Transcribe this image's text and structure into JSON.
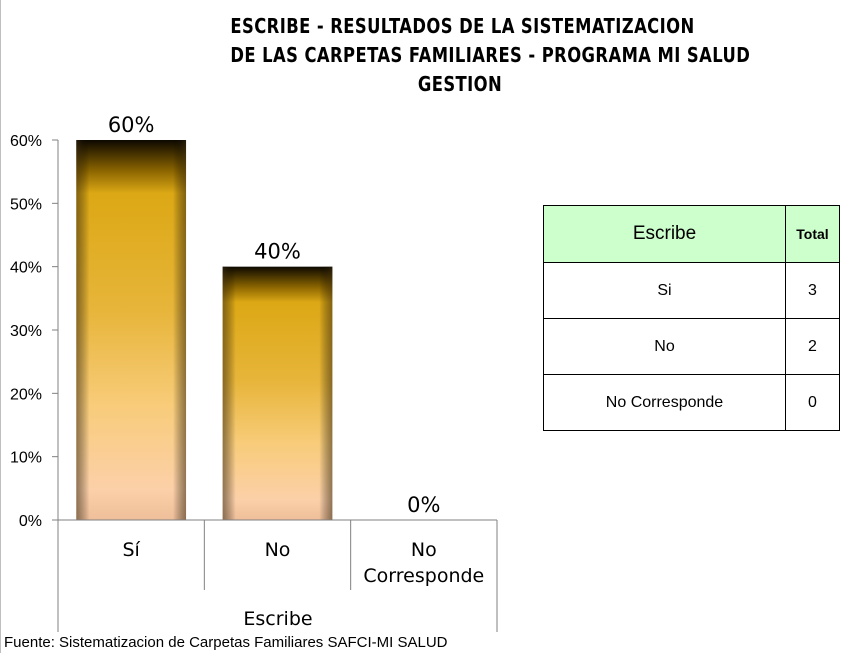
{
  "title_lines": [
    "ESCRIBE - RESULTADOS DE LA SISTEMATIZACION",
    "DE LAS CARPETAS FAMILIARES - PROGRAMA MI SALUD",
    "GESTION"
  ],
  "chart_data": {
    "type": "bar",
    "categories": [
      "Sí",
      "No",
      "No Corresponde"
    ],
    "values": [
      60,
      40,
      0
    ],
    "data_labels": [
      "60%",
      "40%",
      "0%"
    ],
    "y_ticks": [
      "0%",
      "10%",
      "20%",
      "30%",
      "40%",
      "50%",
      "60%"
    ],
    "ylim": [
      0,
      60
    ],
    "xlabel": "Escribe",
    "ylabel": "",
    "grid": false,
    "bar_colors": {
      "top": "#1a1200",
      "mid": "#d9a514",
      "bottom": "#f6c8a8"
    }
  },
  "table": {
    "headers": [
      "Escribe",
      "Total"
    ],
    "rows": [
      [
        "Si",
        "3"
      ],
      [
        "No",
        "2"
      ],
      [
        "No Corresponde",
        "0"
      ]
    ]
  },
  "source": "Fuente: Sistematizacion de Carpetas Familiares SAFCI-MI SALUD"
}
